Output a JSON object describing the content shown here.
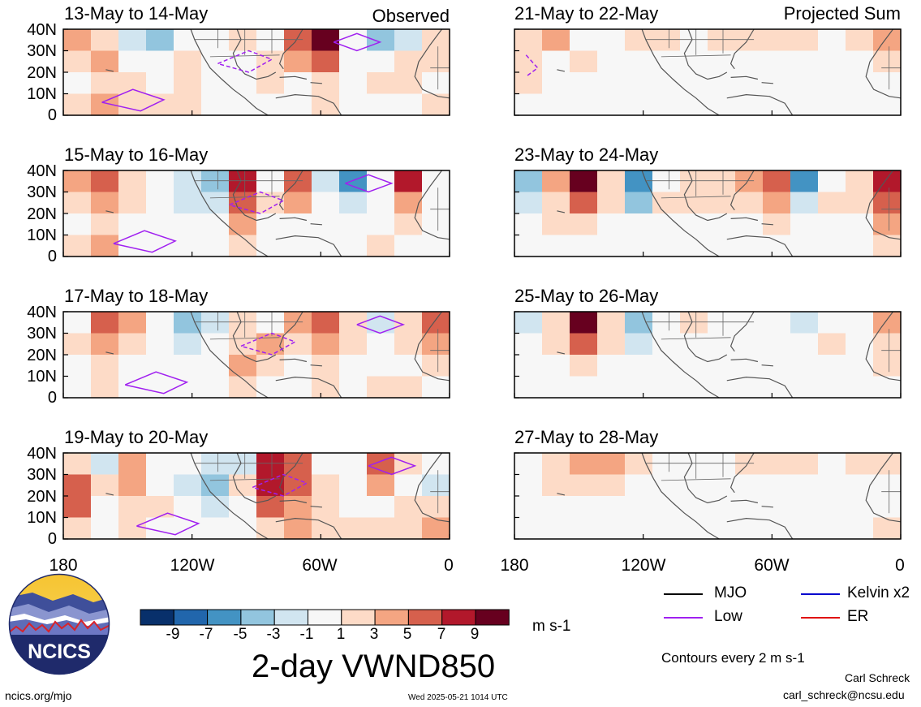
{
  "header": {
    "left_tag": "Observed",
    "right_tag": "Projected Sum"
  },
  "panels_left": [
    {
      "title": "13-May to 14-May"
    },
    {
      "title": "15-May to 16-May"
    },
    {
      "title": "17-May to 18-May"
    },
    {
      "title": "19-May to 20-May"
    }
  ],
  "panels_right": [
    {
      "title": "21-May to 22-May"
    },
    {
      "title": "23-May to 24-May"
    },
    {
      "title": "25-May to 26-May"
    },
    {
      "title": "27-May to 28-May"
    }
  ],
  "y_ticks": [
    "40N",
    "30N",
    "20N",
    "10N",
    "0"
  ],
  "x_ticks": [
    "180",
    "120W",
    "60W",
    "0"
  ],
  "colorbar": {
    "ticks": [
      "-9",
      "-7",
      "-5",
      "-3",
      "-1",
      "1",
      "3",
      "5",
      "7",
      "9"
    ],
    "units": "m s-1",
    "colors": [
      "#08306b",
      "#2166ac",
      "#4393c3",
      "#92c5de",
      "#d1e5f0",
      "#f7f7f7",
      "#fddbc7",
      "#f4a582",
      "#d6604d",
      "#b2182b",
      "#67001f"
    ]
  },
  "main_title": "2-day VWND850",
  "legend": {
    "mjo": "MJO",
    "low": "Low",
    "kelvin": "Kelvin x2",
    "er": "ER",
    "contours_note": "Contours every 2 m s-1",
    "colors": {
      "mjo": "#000000",
      "low": "#a020f0",
      "kelvin": "#0000cd",
      "er": "#e00000"
    }
  },
  "footer": {
    "url": "ncics.org/mjo",
    "timestamp": "Wed 2025-05-21 1014 UTC",
    "author": "Carl Schreck",
    "email": "carl_schreck@ncsu.edu",
    "logo_text": "NCICS"
  },
  "chart_data": {
    "type": "heatmap",
    "variable": "2-day VWND850",
    "units": "m s-1",
    "x_range": [
      "180",
      "0"
    ],
    "y_range": [
      "0",
      "40N"
    ],
    "levels": [
      -9,
      -7,
      -5,
      -3,
      -1,
      1,
      3,
      5,
      7,
      9
    ],
    "panels": [
      {
        "title": "13-May to 14-May",
        "kind": "Observed",
        "cells": [
          [
            3,
            1,
            -3,
            -5,
            -1,
            -1,
            1,
            0,
            5,
            9,
            -1,
            -5,
            -3,
            1
          ],
          [
            1,
            3,
            -1,
            -1,
            1,
            0,
            0,
            1,
            3,
            5,
            -1,
            -1,
            1,
            1
          ],
          [
            -1,
            1,
            1,
            0,
            1,
            0,
            -1,
            1,
            -1,
            1,
            0,
            1,
            1,
            0
          ],
          [
            1,
            3,
            1,
            1,
            1,
            -1,
            0,
            -1,
            0,
            1,
            0,
            -1,
            0,
            1
          ]
        ]
      },
      {
        "title": "15-May to 16-May",
        "kind": "Observed",
        "cells": [
          [
            3,
            5,
            1,
            -1,
            -3,
            -5,
            7,
            -1,
            5,
            -3,
            -7,
            -1,
            7,
            -1
          ],
          [
            1,
            3,
            1,
            -1,
            -3,
            -3,
            5,
            1,
            3,
            -1,
            -3,
            -1,
            3,
            -1
          ],
          [
            -1,
            1,
            -1,
            -1,
            -1,
            -1,
            3,
            -1,
            -1,
            -1,
            -1,
            0,
            1,
            0
          ],
          [
            1,
            3,
            -1,
            -1,
            -1,
            0,
            1,
            -1,
            0,
            -1,
            0,
            1,
            0,
            0
          ]
        ]
      },
      {
        "title": "17-May to 18-May",
        "kind": "Observed",
        "cells": [
          [
            -1,
            5,
            3,
            -1,
            -5,
            -3,
            1,
            -1,
            3,
            5,
            1,
            -3,
            1,
            5
          ],
          [
            1,
            3,
            1,
            -1,
            -3,
            -1,
            1,
            3,
            1,
            3,
            1,
            -1,
            1,
            3
          ],
          [
            0,
            1,
            -1,
            -1,
            -1,
            -1,
            3,
            1,
            -1,
            1,
            0,
            -1,
            0,
            1
          ],
          [
            -1,
            1,
            -1,
            -1,
            0,
            -1,
            1,
            -1,
            0,
            1,
            0,
            1,
            1,
            0
          ]
        ]
      },
      {
        "title": "19-May to 20-May",
        "kind": "Observed",
        "cells": [
          [
            1,
            -3,
            3,
            -1,
            -1,
            -3,
            -3,
            7,
            5,
            -1,
            -1,
            5,
            1,
            -1
          ],
          [
            5,
            1,
            3,
            -1,
            -3,
            -5,
            1,
            7,
            5,
            1,
            -1,
            3,
            -1,
            -3
          ],
          [
            5,
            -1,
            1,
            1,
            -1,
            -3,
            -1,
            5,
            3,
            1,
            -1,
            -1,
            1,
            1
          ],
          [
            1,
            -1,
            1,
            -1,
            0,
            -1,
            -1,
            1,
            3,
            1,
            1,
            1,
            1,
            3
          ]
        ]
      },
      {
        "title": "21-May to 22-May",
        "kind": "Projected Sum",
        "cells": [
          [
            1,
            3,
            -1,
            -1,
            1,
            1,
            0,
            1,
            1,
            1,
            1,
            -1,
            1,
            3
          ],
          [
            1,
            -1,
            1,
            -1,
            -1,
            0,
            0,
            0,
            0,
            0,
            0,
            0,
            -1,
            1
          ],
          [
            1,
            -1,
            -1,
            0,
            0,
            0,
            0,
            0,
            0,
            0,
            0,
            0,
            0,
            0
          ],
          [
            0,
            0,
            0,
            0,
            0,
            0,
            0,
            0,
            0,
            0,
            0,
            0,
            0,
            0
          ]
        ]
      },
      {
        "title": "23-May to 24-May",
        "kind": "Projected Sum",
        "cells": [
          [
            -5,
            3,
            9,
            1,
            -7,
            -1,
            1,
            1,
            3,
            5,
            -7,
            -1,
            1,
            7
          ],
          [
            -3,
            1,
            5,
            1,
            -5,
            1,
            1,
            1,
            1,
            3,
            -3,
            1,
            1,
            5
          ],
          [
            -1,
            1,
            1,
            0,
            -1,
            0,
            0,
            0,
            0,
            1,
            -1,
            0,
            0,
            3
          ],
          [
            0,
            0,
            0,
            0,
            0,
            0,
            0,
            0,
            0,
            0,
            0,
            0,
            0,
            1
          ]
        ]
      },
      {
        "title": "25-May to 26-May",
        "kind": "Projected Sum",
        "cells": [
          [
            -3,
            1,
            9,
            1,
            -5,
            -1,
            1,
            0,
            0,
            -1,
            -3,
            -1,
            -1,
            3
          ],
          [
            -1,
            1,
            5,
            1,
            -3,
            0,
            0,
            0,
            0,
            0,
            -1,
            1,
            0,
            1
          ],
          [
            0,
            0,
            1,
            0,
            -1,
            0,
            0,
            0,
            0,
            0,
            0,
            0,
            0,
            1
          ],
          [
            0,
            0,
            0,
            0,
            0,
            0,
            0,
            0,
            0,
            0,
            0,
            0,
            0,
            0
          ]
        ]
      },
      {
        "title": "27-May to 28-May",
        "kind": "Projected Sum",
        "cells": [
          [
            -1,
            1,
            3,
            3,
            1,
            -1,
            0,
            0,
            1,
            1,
            1,
            -1,
            1,
            1
          ],
          [
            0,
            1,
            1,
            1,
            0,
            -1,
            0,
            0,
            0,
            0,
            0,
            0,
            0,
            0
          ],
          [
            0,
            0,
            0,
            0,
            0,
            0,
            0,
            0,
            0,
            0,
            0,
            0,
            0,
            0
          ],
          [
            0,
            0,
            0,
            0,
            0,
            0,
            0,
            0,
            0,
            0,
            0,
            0,
            0,
            1
          ]
        ]
      }
    ]
  }
}
